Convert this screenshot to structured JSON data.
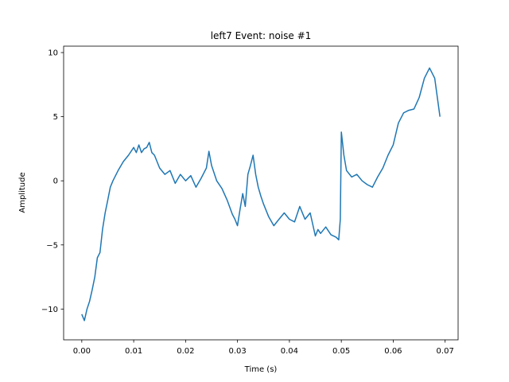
{
  "chart_data": {
    "type": "line",
    "title": "left7 Event: noise #1",
    "xlabel": "Time (s)",
    "ylabel": "Amplitude",
    "xlim": [
      -0.0035,
      0.0725
    ],
    "ylim": [
      -12.4,
      10.5
    ],
    "xticks": [
      0.0,
      0.01,
      0.02,
      0.03,
      0.04,
      0.05,
      0.06,
      0.07
    ],
    "xtick_labels": [
      "0.00",
      "0.01",
      "0.02",
      "0.03",
      "0.04",
      "0.05",
      "0.06",
      "0.07"
    ],
    "yticks": [
      -10,
      -5,
      0,
      5,
      10
    ],
    "ytick_labels": [
      "−10",
      "−5",
      "0",
      "5",
      "10"
    ],
    "grid": false,
    "series": [
      {
        "color": "#1f77b4",
        "x": [
          0.0,
          0.0005,
          0.001,
          0.0015,
          0.002,
          0.0025,
          0.003,
          0.0035,
          0.004,
          0.0045,
          0.005,
          0.0055,
          0.006,
          0.007,
          0.008,
          0.009,
          0.01,
          0.0105,
          0.011,
          0.0115,
          0.012,
          0.0125,
          0.013,
          0.0135,
          0.014,
          0.015,
          0.016,
          0.017,
          0.018,
          0.019,
          0.02,
          0.021,
          0.022,
          0.023,
          0.024,
          0.0245,
          0.025,
          0.026,
          0.027,
          0.028,
          0.029,
          0.0295,
          0.03,
          0.0305,
          0.031,
          0.0315,
          0.032,
          0.0325,
          0.033,
          0.0335,
          0.034,
          0.0345,
          0.035,
          0.036,
          0.037,
          0.038,
          0.039,
          0.04,
          0.041,
          0.042,
          0.043,
          0.044,
          0.045,
          0.0455,
          0.046,
          0.047,
          0.048,
          0.049,
          0.0495,
          0.0498,
          0.05,
          0.0505,
          0.051,
          0.052,
          0.053,
          0.054,
          0.055,
          0.056,
          0.057,
          0.058,
          0.059,
          0.06,
          0.061,
          0.062,
          0.063,
          0.064,
          0.065,
          0.066,
          0.067,
          0.068,
          0.0685,
          0.069
        ],
        "y": [
          -10.4,
          -10.9,
          -10.0,
          -9.4,
          -8.5,
          -7.5,
          -6.0,
          -5.6,
          -3.8,
          -2.5,
          -1.5,
          -0.5,
          0.0,
          0.8,
          1.5,
          2.0,
          2.6,
          2.2,
          2.8,
          2.2,
          2.5,
          2.6,
          3.0,
          2.2,
          2.0,
          1.0,
          0.5,
          0.8,
          -0.2,
          0.5,
          0.0,
          0.4,
          -0.5,
          0.2,
          1.0,
          2.3,
          1.2,
          0.0,
          -0.6,
          -1.5,
          -2.6,
          -3.0,
          -3.5,
          -2.2,
          -1.0,
          -2.0,
          0.5,
          1.2,
          2.0,
          0.5,
          -0.5,
          -1.2,
          -1.8,
          -2.8,
          -3.5,
          -3.0,
          -2.5,
          -3.0,
          -3.2,
          -2.0,
          -3.0,
          -2.5,
          -4.3,
          -3.8,
          -4.1,
          -3.6,
          -4.2,
          -4.4,
          -4.6,
          -3.0,
          3.8,
          2.0,
          0.8,
          0.3,
          0.5,
          0.0,
          -0.3,
          -0.5,
          0.3,
          1.0,
          2.0,
          2.8,
          4.5,
          5.3,
          5.5,
          5.6,
          6.5,
          8.0,
          8.8,
          8.0,
          6.5,
          5.0
        ]
      }
    ]
  }
}
